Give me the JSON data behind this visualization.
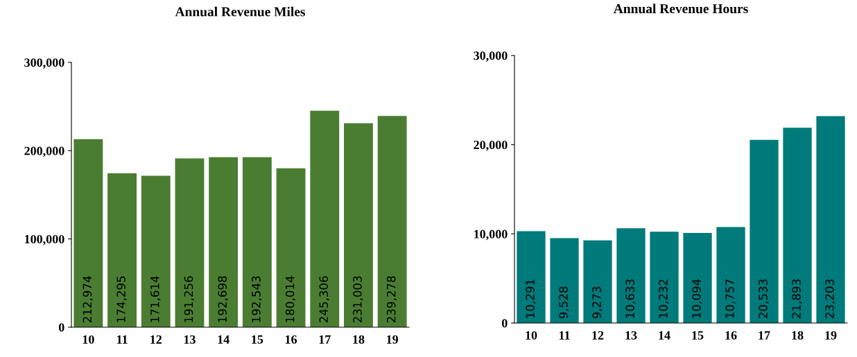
{
  "chart_data": [
    {
      "type": "bar",
      "title": "Annual Revenue Miles",
      "categories": [
        "10",
        "11",
        "12",
        "13",
        "14",
        "15",
        "16",
        "17",
        "18",
        "19"
      ],
      "values": [
        212974,
        174295,
        171614,
        191256,
        192698,
        192543,
        180014,
        245306,
        231003,
        239278
      ],
      "color": "#4a7d32",
      "value_labels": [
        "212,974",
        "174,295",
        "171,614",
        "191,256",
        "192,698",
        "192,543",
        "180,014",
        "245,306",
        "231,003",
        "239,278"
      ],
      "ylim": [
        0,
        300000
      ],
      "yticks": [
        {
          "value": 0,
          "label": "0"
        },
        {
          "value": 100000,
          "label": "100,000"
        },
        {
          "value": 200000,
          "label": "200,000"
        },
        {
          "value": 300000,
          "label": "300,000"
        }
      ]
    },
    {
      "type": "bar",
      "title": "Annual Revenue Hours",
      "categories": [
        "10",
        "11",
        "12",
        "13",
        "14",
        "15",
        "16",
        "17",
        "18",
        "19"
      ],
      "values": [
        10291,
        9528,
        9273,
        10633,
        10232,
        10094,
        10757,
        20533,
        21893,
        23203
      ],
      "color": "#007a7a",
      "value_labels": [
        "10,291",
        "9,528",
        "9,273",
        "10,633",
        "10,232",
        "10,094",
        "10,757",
        "20,533",
        "21,893",
        "23,203"
      ],
      "ylim": [
        0,
        30000
      ],
      "yticks": [
        {
          "value": 0,
          "label": "0"
        },
        {
          "value": 10000,
          "label": "10,000"
        },
        {
          "value": 20000,
          "label": "20,000"
        },
        {
          "value": 30000,
          "label": "30,000"
        }
      ]
    }
  ]
}
